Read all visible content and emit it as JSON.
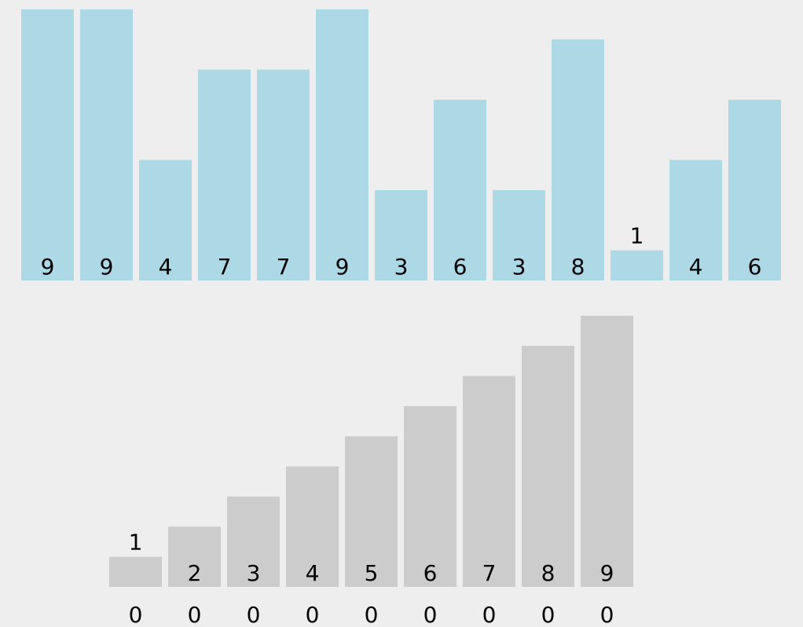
{
  "colors": {
    "background": "#eeeeee",
    "input_bar": "#add8e6",
    "bucket_bar": "#cccccc",
    "text": "#000000"
  },
  "chart_data": [
    {
      "type": "bar",
      "title": "",
      "xlabel": "",
      "ylabel": "",
      "values": [
        9,
        9,
        4,
        7,
        7,
        9,
        3,
        6,
        3,
        8,
        1,
        4,
        6
      ],
      "labels": [
        "9",
        "9",
        "4",
        "7",
        "7",
        "9",
        "3",
        "6",
        "3",
        "8",
        "1",
        "4",
        "6"
      ],
      "ylim": [
        0,
        9
      ],
      "color": "#add8e6",
      "grid": false,
      "legend": "none"
    },
    {
      "type": "bar",
      "title": "",
      "xlabel": "",
      "ylabel": "",
      "values": [
        1,
        2,
        3,
        4,
        5,
        6,
        7,
        8,
        9
      ],
      "labels": [
        "1",
        "2",
        "3",
        "4",
        "5",
        "6",
        "7",
        "8",
        "9"
      ],
      "counts": [
        "0",
        "0",
        "0",
        "0",
        "0",
        "0",
        "0",
        "0",
        "0"
      ],
      "ylim": [
        0,
        9
      ],
      "color": "#cccccc",
      "grid": false,
      "legend": "none"
    }
  ]
}
